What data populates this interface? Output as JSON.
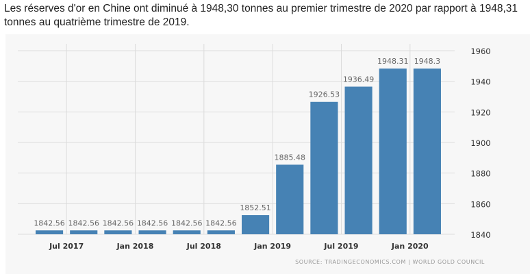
{
  "headline": "Les réserves d'or en Chine ont diminué à 1948,30 tonnes au premier trimestre de 2020 par rapport à 1948,31 tonnes au quatrième trimestre de 2019.",
  "source": "SOURCE: TRADINGECONOMICS.COM | WORLD GOLD COUNCIL",
  "colors": {
    "bar": "#4682b4",
    "label": "#666666",
    "grid": "#dcdcdc",
    "axis_text": "#333333"
  },
  "chart_data": {
    "type": "bar",
    "categories": [
      "2017 Q2",
      "2017 Q3",
      "2017 Q4",
      "2018 Q1",
      "2018 Q2",
      "2018 Q3",
      "2018 Q4",
      "2019 Q1",
      "2019 Q2",
      "2019 Q3",
      "2019 Q4",
      "2020 Q1"
    ],
    "values": [
      1842.56,
      1842.56,
      1842.56,
      1842.56,
      1842.56,
      1842.56,
      1852.51,
      1885.48,
      1926.53,
      1936.49,
      1948.31,
      1948.3
    ],
    "data_labels": [
      "1842.56",
      "1842.56",
      "1842.56",
      "1842.56",
      "1842.56",
      "1842.56",
      "1852.51",
      "1885.48",
      "1926.53",
      "1936.49",
      "1948.31",
      "1948.3"
    ],
    "x_tick_labels": [
      {
        "after_index": 0,
        "label": "Jul 2017"
      },
      {
        "after_index": 2,
        "label": "Jan 2018"
      },
      {
        "after_index": 4,
        "label": "Jul 2018"
      },
      {
        "after_index": 6,
        "label": "Jan 2019"
      },
      {
        "after_index": 8,
        "label": "Jul 2019"
      },
      {
        "after_index": 10,
        "label": "Jan 2020"
      }
    ],
    "yticks": [
      1840,
      1860,
      1880,
      1900,
      1920,
      1940,
      1960
    ],
    "ylim": [
      1840,
      1960
    ],
    "y_axis_position": "right",
    "grid": true,
    "legend": "none",
    "title": "",
    "xlabel": "",
    "ylabel": ""
  }
}
